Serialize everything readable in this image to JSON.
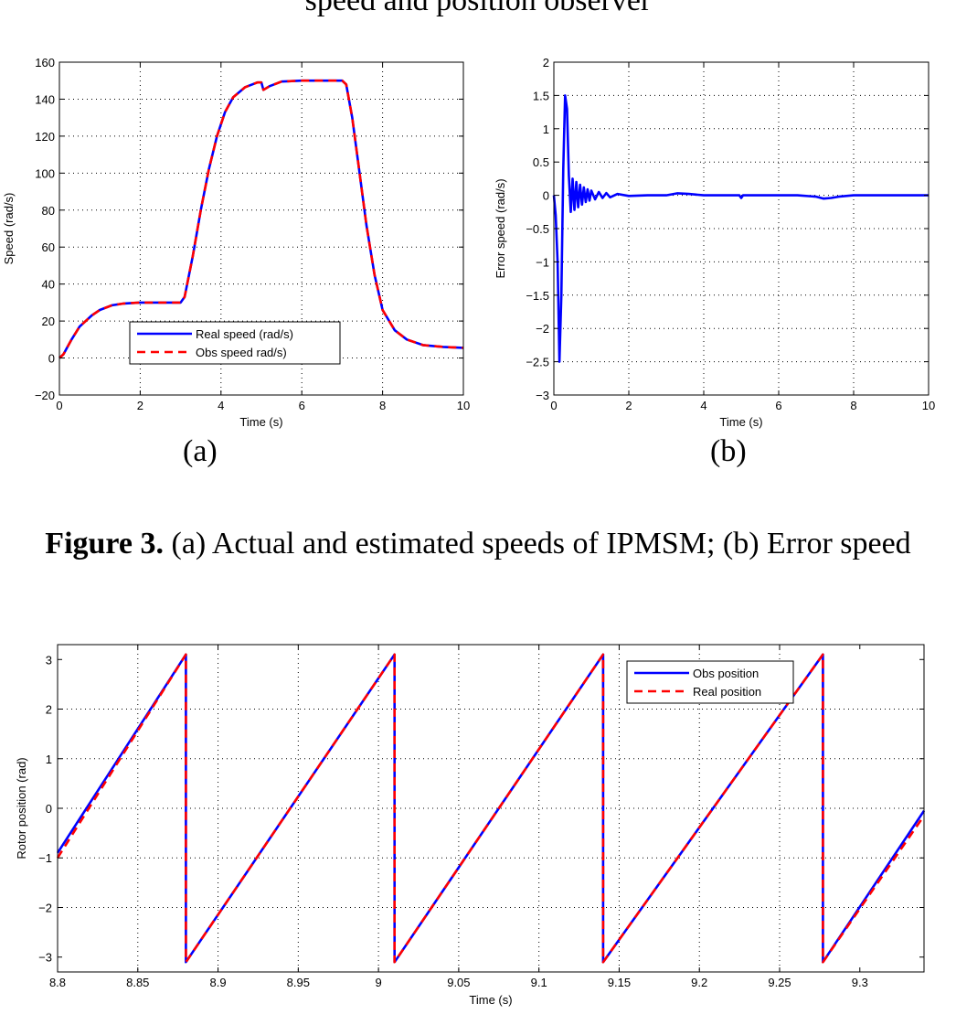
{
  "top_title": "speed and position observer",
  "figure3": {
    "caption_bold": "Figure 3.",
    "caption_rest": " (a) Actual and estimated speeds of IPMSM; (b) Error speed",
    "label_a": "(a)",
    "label_b": "(b)"
  },
  "chart_data": [
    {
      "type": "line",
      "xlabel": "Time (s)",
      "ylabel": "Speed (rad/s)",
      "xlim": [
        0,
        10
      ],
      "ylim": [
        -20,
        160
      ],
      "xticks": [
        0,
        2,
        4,
        6,
        8,
        10
      ],
      "yticks": [
        -20,
        0,
        20,
        40,
        60,
        80,
        100,
        120,
        140,
        160
      ],
      "grid": true,
      "legend": "bottom-center",
      "series": [
        {
          "name": "Real speed (rad/s)",
          "color": "#0000ff",
          "style": "solid",
          "x": [
            0,
            0.1,
            0.3,
            0.5,
            0.8,
            1.0,
            1.3,
            1.6,
            2.0,
            2.5,
            3.0,
            3.1,
            3.3,
            3.5,
            3.7,
            3.9,
            4.1,
            4.3,
            4.6,
            4.9,
            5.0,
            5.05,
            5.2,
            5.5,
            6.0,
            6.5,
            7.0,
            7.1,
            7.25,
            7.4,
            7.6,
            7.8,
            8.0,
            8.3,
            8.6,
            9.0,
            9.5,
            10.0
          ],
          "y": [
            0,
            2,
            10,
            17,
            23,
            26,
            28.5,
            29.5,
            30,
            30,
            30,
            33,
            55,
            80,
            102,
            120,
            133,
            141,
            146.5,
            149,
            149,
            145,
            147,
            149.5,
            150,
            150,
            150,
            148,
            130,
            105,
            72,
            45,
            26,
            15,
            10,
            7,
            6,
            5.5
          ]
        },
        {
          "name": "Obs speed rad/s)",
          "color": "#ff0000",
          "style": "dashed",
          "x": [
            0,
            0.1,
            0.3,
            0.5,
            0.8,
            1.0,
            1.3,
            1.6,
            2.0,
            2.5,
            3.0,
            3.1,
            3.3,
            3.5,
            3.7,
            3.9,
            4.1,
            4.3,
            4.6,
            4.9,
            5.0,
            5.05,
            5.2,
            5.5,
            6.0,
            6.5,
            7.0,
            7.1,
            7.25,
            7.4,
            7.6,
            7.8,
            8.0,
            8.3,
            8.6,
            9.0,
            9.5,
            10.0
          ],
          "y": [
            0,
            2,
            10,
            17,
            23,
            26,
            28.5,
            29.5,
            30,
            30,
            30,
            33,
            55,
            80,
            102,
            120,
            133,
            141,
            146.5,
            149,
            149,
            145,
            147,
            149.5,
            150,
            150,
            150,
            148,
            130,
            105,
            72,
            45,
            26,
            15,
            10,
            7,
            6,
            5.5
          ]
        }
      ]
    },
    {
      "type": "line",
      "xlabel": "Time (s)",
      "ylabel": "Error speed (rad/s)",
      "xlim": [
        0,
        10
      ],
      "ylim": [
        -3,
        2
      ],
      "xticks": [
        0,
        2,
        4,
        6,
        8,
        10
      ],
      "yticks": [
        -3,
        -2.5,
        -2,
        -1.5,
        -1,
        -0.5,
        0,
        0.5,
        1,
        1.5,
        2
      ],
      "grid": true,
      "series": [
        {
          "color": "#0000ff",
          "style": "solid",
          "x": [
            0,
            0.05,
            0.1,
            0.15,
            0.2,
            0.25,
            0.3,
            0.35,
            0.4,
            0.45,
            0.5,
            0.55,
            0.6,
            0.65,
            0.7,
            0.75,
            0.8,
            0.85,
            0.9,
            0.95,
            1.0,
            1.1,
            1.2,
            1.3,
            1.4,
            1.5,
            1.7,
            2.0,
            2.5,
            3.0,
            3.3,
            3.6,
            4.0,
            4.5,
            4.95,
            5.0,
            5.05,
            5.5,
            6.0,
            6.5,
            7.0,
            7.2,
            7.4,
            7.6,
            8.0,
            9.0,
            10.0
          ],
          "y": [
            0,
            -0.3,
            -1.0,
            -2.5,
            -1.5,
            0.4,
            1.5,
            1.3,
            0.3,
            -0.25,
            0.25,
            -0.22,
            0.2,
            -0.18,
            0.16,
            -0.14,
            0.12,
            -0.1,
            0.09,
            -0.08,
            0.07,
            -0.06,
            0.05,
            -0.04,
            0.035,
            -0.03,
            0.02,
            -0.01,
            0.0,
            0.0,
            0.03,
            0.02,
            0.0,
            0.0,
            0.0,
            -0.04,
            0.0,
            0.0,
            0.0,
            0.0,
            -0.02,
            -0.05,
            -0.04,
            -0.02,
            0.0,
            0.0,
            0.0
          ]
        }
      ]
    },
    {
      "type": "line",
      "xlabel": "Time (s)",
      "ylabel": "Rotor position (rad)",
      "xlim": [
        8.8,
        9.34
      ],
      "ylim": [
        -3.3,
        3.3
      ],
      "xticks": [
        8.8,
        8.85,
        8.9,
        8.95,
        9.0,
        9.05,
        9.1,
        9.15,
        9.2,
        9.25,
        9.3
      ],
      "xtick_labels": [
        "8.8",
        "8.85",
        "8.9",
        "8.95",
        "9",
        "9.05",
        "9.1",
        "9.15",
        "9.2",
        "9.25",
        "9.3"
      ],
      "yticks": [
        -3,
        -2,
        -1,
        0,
        1,
        2,
        3
      ],
      "grid": true,
      "legend": "top-right",
      "series": [
        {
          "name": "Obs position",
          "color": "#0000ff",
          "style": "solid",
          "x": [
            8.8,
            8.88,
            8.88,
            9.01,
            9.01,
            9.14,
            9.14,
            9.277,
            9.277,
            9.34
          ],
          "y": [
            -0.9,
            3.1,
            -3.1,
            3.1,
            -3.1,
            3.1,
            -3.1,
            3.1,
            -3.1,
            -0.05
          ]
        },
        {
          "name": "Real position",
          "color": "#ff0000",
          "style": "dashed",
          "x": [
            8.8,
            8.88,
            8.88,
            9.01,
            9.01,
            9.14,
            9.14,
            9.277,
            9.277,
            9.34
          ],
          "y": [
            -1.0,
            3.1,
            -3.1,
            3.1,
            -3.1,
            3.1,
            -3.1,
            3.1,
            -3.1,
            -0.15
          ]
        }
      ]
    }
  ]
}
